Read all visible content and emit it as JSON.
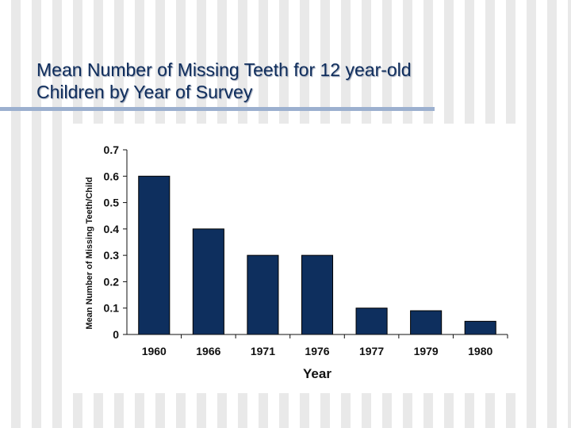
{
  "slide": {
    "title_line1": "Mean Number of Missing Teeth for 12 year-old",
    "title_line2": "Children by Year of Survey"
  },
  "chart_data": {
    "type": "bar",
    "categories": [
      "1960",
      "1966",
      "1971",
      "1976",
      "1977",
      "1979",
      "1980"
    ],
    "values": [
      0.6,
      0.4,
      0.3,
      0.3,
      0.1,
      0.09,
      0.05
    ],
    "title": "",
    "xlabel": "Year",
    "ylabel": "Mean Number of Missing Teeth/Child",
    "ylim": [
      0,
      0.7
    ],
    "yticks": [
      "0",
      "0.1",
      "0.2",
      "0.3",
      "0.4",
      "0.5",
      "0.6",
      "0.7"
    ],
    "grid": false,
    "bar_color": "#0e2f5e"
  }
}
